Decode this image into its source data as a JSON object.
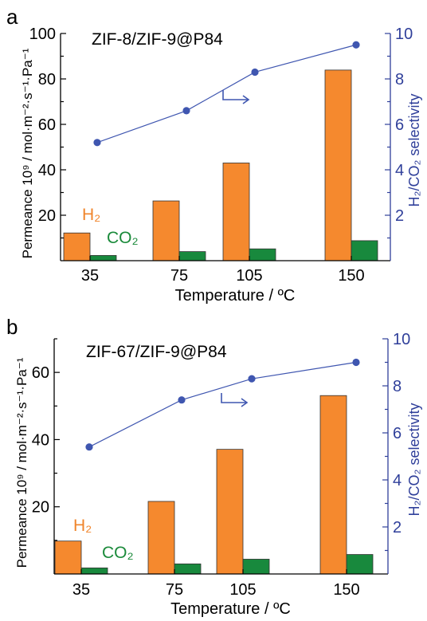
{
  "chart_data": [
    {
      "type": "bar",
      "panel": "a",
      "title": "ZIF-8/ZIF-9@P84",
      "xlabel": "Temperature / ºC",
      "ylabel": "Permeance 10⁹ / mol·m⁻²·s⁻¹·Pa⁻¹",
      "y2label": "H₂/CO₂ selectivity",
      "categories": [
        "35",
        "75",
        "105",
        "150"
      ],
      "x": [
        35,
        75,
        105,
        150
      ],
      "ylim": [
        0,
        100
      ],
      "yticks": [
        20,
        40,
        60,
        80,
        100
      ],
      "y2lim": [
        0,
        10
      ],
      "y2ticks": [
        2,
        4,
        6,
        8,
        10
      ],
      "series": [
        {
          "name": "H₂",
          "values": [
            12.2,
            26.3,
            43.0,
            83.9
          ],
          "color": "#f5892e"
        },
        {
          "name": "CO₂",
          "values": [
            2.3,
            4.0,
            5.2,
            8.8
          ],
          "color": "#18893d"
        }
      ],
      "selectivity": {
        "values": [
          5.2,
          6.6,
          8.3,
          9.5
        ],
        "color": "#3f56b0"
      }
    },
    {
      "type": "bar",
      "panel": "b",
      "title": "ZIF-67/ZIF-9@P84",
      "xlabel": "Temperature / ºC",
      "ylabel": "Permeance 10⁹ / mol·m⁻²·s⁻¹·Pa⁻¹",
      "y2label": "H₂/CO₂ selectivity",
      "categories": [
        "35",
        "75",
        "105",
        "150"
      ],
      "x": [
        35,
        75,
        105,
        150
      ],
      "ylim": [
        0,
        70
      ],
      "yticks": [
        20,
        40,
        60
      ],
      "y2lim": [
        0,
        10
      ],
      "y2ticks": [
        2,
        4,
        6,
        8,
        10
      ],
      "series": [
        {
          "name": "H₂",
          "values": [
            9.8,
            21.6,
            37.1,
            53.1
          ],
          "color": "#f5892e"
        },
        {
          "name": "CO₂",
          "values": [
            1.8,
            3.0,
            4.4,
            5.8
          ],
          "color": "#18893d"
        }
      ],
      "selectivity": {
        "values": [
          5.4,
          7.4,
          8.3,
          9.0
        ],
        "color": "#3f56b0"
      }
    }
  ]
}
